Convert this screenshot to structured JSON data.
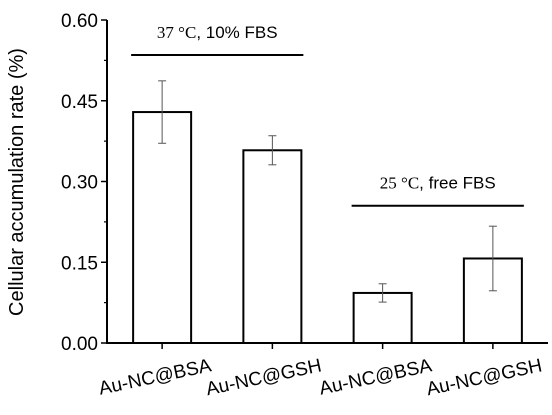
{
  "chart_data": {
    "type": "bar",
    "ylabel": "Cellular accumulation rate (%)",
    "xlabel": "",
    "ylim": [
      0.0,
      0.6
    ],
    "yticks": [
      "0.00",
      "0.15",
      "0.30",
      "0.45",
      "0.60"
    ],
    "categories": [
      "Au-NC@BSA",
      "Au-NC@GSH",
      "Au-NC@BSA",
      "Au-NC@GSH"
    ],
    "values": [
      0.429,
      0.358,
      0.093,
      0.157
    ],
    "errors": [
      0.058,
      0.027,
      0.017,
      0.06
    ],
    "bar_fill": "#ffffff",
    "bar_stroke": "#000000",
    "annotations": [
      {
        "group": [
          0,
          1
        ],
        "temp": "37 °C",
        "text": ", 10% FBS",
        "y": 0.535
      },
      {
        "group": [
          2,
          3
        ],
        "temp": "25 °C",
        "text": ", free FBS",
        "y": 0.255
      }
    ]
  }
}
